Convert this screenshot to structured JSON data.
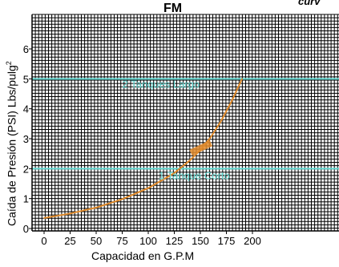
{
  "chart_data": {
    "type": "line",
    "title": "FM",
    "corner_text": "curv",
    "xlabel": "Capacidad en G.P.M",
    "ylabel": "Caída de Presión (PSI) Lbs/pulg",
    "ylabel_sup": "2",
    "xlim": [
      0,
      320
    ],
    "ylim": [
      0,
      6.8
    ],
    "x_ticks": [
      0,
      25,
      50,
      75,
      100,
      125,
      150,
      175,
      200
    ],
    "x_tick_labels": [
      "0",
      "25",
      "50",
      "75",
      "100",
      "125",
      "150",
      "175",
      "200"
    ],
    "y_ticks": [
      0,
      1,
      2,
      3,
      4,
      5,
      6
    ],
    "y_tick_labels": [
      "0",
      "1",
      "2",
      "3",
      "4",
      "5",
      "6"
    ],
    "grid": true,
    "series": [
      {
        "color": "#e08a2a",
        "x": [
          0,
          25,
          50,
          75,
          100,
          125,
          140,
          150,
          160,
          170,
          180,
          190
        ],
        "y": [
          0.35,
          0.5,
          0.7,
          0.98,
          1.35,
          1.85,
          2.28,
          2.62,
          3.05,
          3.6,
          4.25,
          5.0
        ]
      }
    ],
    "annotations": [
      {
        "text": "2 Tanques Largo",
        "x": 75,
        "y": 4.7,
        "color": "#5fd6cf"
      },
      {
        "text": "1 Tanque Corto",
        "x": 110,
        "y": 1.65,
        "color": "#5fd6cf"
      },
      {
        "text": "",
        "x": 145,
        "y": 2.6,
        "color": "#e08a2a"
      }
    ],
    "reference_lines": [
      {
        "y": 5.0,
        "color": "#5fd6cf"
      },
      {
        "y": 2.0,
        "color": "#5fd6cf"
      }
    ],
    "colors": {
      "grid": "#000000",
      "curve": "#e08a2a",
      "highlight": "#5fd6cf"
    }
  }
}
